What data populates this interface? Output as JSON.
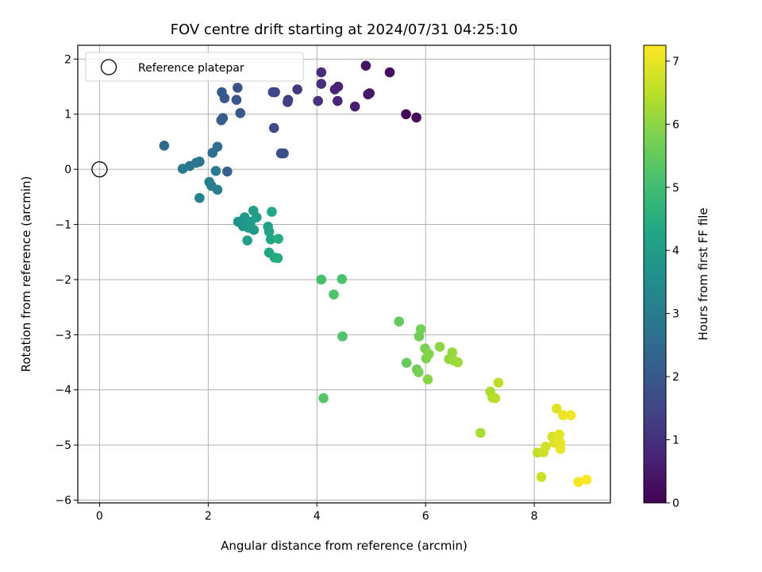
{
  "chart_data": {
    "type": "scatter",
    "title": "FOV centre drift starting at 2024/07/31 04:25:10",
    "xlabel": "Angular distance from reference (arcmin)",
    "ylabel": "Rotation from reference (arcmin)",
    "xlim": [
      -0.4,
      9.4
    ],
    "ylim": [
      -6.05,
      2.25
    ],
    "xticks": [
      0,
      2,
      4,
      6,
      8
    ],
    "yticks": [
      2,
      1,
      0,
      -1,
      -2,
      -3,
      -4,
      -5,
      -6
    ],
    "xtick_labels": [
      "0",
      "2",
      "4",
      "6",
      "8"
    ],
    "ytick_labels": [
      "2",
      "1",
      "0",
      "−1",
      "−2",
      "−3",
      "−4",
      "−5",
      "−6"
    ],
    "grid": true,
    "legend": {
      "position": "top-left",
      "entries": [
        {
          "label": "Reference platepar",
          "marker": "open-circle"
        }
      ]
    },
    "reference_point": {
      "x": 0,
      "y": 0
    },
    "colorbar": {
      "label": "Hours from first FF file",
      "colormap": "viridis",
      "range": [
        0,
        7.25
      ],
      "ticks": [
        0,
        1,
        2,
        3,
        4,
        5,
        6,
        7
      ],
      "tick_labels": [
        "0",
        "1",
        "2",
        "3",
        "4",
        "5",
        "6",
        "7"
      ]
    },
    "points": [
      [
        5.64,
        1.0,
        0.1
      ],
      [
        5.83,
        0.94,
        0.15
      ],
      [
        5.34,
        1.76,
        0.25
      ],
      [
        4.9,
        1.88,
        0.35
      ],
      [
        4.97,
        1.38,
        0.45
      ],
      [
        4.94,
        1.36,
        0.5
      ],
      [
        4.7,
        1.14,
        0.6
      ],
      [
        4.39,
        1.5,
        0.7
      ],
      [
        4.33,
        1.45,
        0.75
      ],
      [
        4.38,
        1.24,
        0.8
      ],
      [
        4.08,
        1.76,
        0.9
      ],
      [
        4.08,
        1.55,
        1.0
      ],
      [
        4.02,
        1.24,
        1.05
      ],
      [
        3.64,
        1.45,
        1.2
      ],
      [
        3.47,
        1.26,
        1.3
      ],
      [
        3.46,
        1.22,
        1.35
      ],
      [
        3.23,
        1.4,
        1.45
      ],
      [
        3.19,
        1.4,
        1.5
      ],
      [
        3.21,
        0.75,
        1.6
      ],
      [
        3.39,
        0.29,
        1.65
      ],
      [
        3.34,
        0.29,
        1.7
      ],
      [
        2.54,
        1.48,
        1.8
      ],
      [
        2.52,
        1.26,
        1.9
      ],
      [
        2.59,
        1.02,
        1.95
      ],
      [
        2.3,
        1.29,
        2.0
      ],
      [
        2.25,
        1.4,
        2.05
      ],
      [
        2.27,
        0.93,
        2.1
      ],
      [
        2.24,
        0.89,
        2.15
      ],
      [
        2.35,
        -0.04,
        2.2
      ],
      [
        1.19,
        0.43,
        2.5
      ],
      [
        2.17,
        0.41,
        2.55
      ],
      [
        2.08,
        0.3,
        2.6
      ],
      [
        1.84,
        0.14,
        2.75
      ],
      [
        1.78,
        0.12,
        2.8
      ],
      [
        1.66,
        0.06,
        2.85
      ],
      [
        1.53,
        0.01,
        2.9
      ],
      [
        2.14,
        -0.03,
        2.95
      ],
      [
        2.02,
        -0.23,
        3.0
      ],
      [
        2.06,
        -0.3,
        3.05
      ],
      [
        2.17,
        -0.37,
        3.1
      ],
      [
        1.84,
        -0.52,
        3.15
      ],
      [
        2.55,
        -0.95,
        3.7
      ],
      [
        2.64,
        -1.03,
        3.75
      ],
      [
        2.67,
        -0.87,
        3.8
      ],
      [
        2.74,
        -1.06,
        3.85
      ],
      [
        2.78,
        -0.95,
        3.9
      ],
      [
        2.84,
        -1.1,
        3.95
      ],
      [
        2.89,
        -0.87,
        4.0
      ],
      [
        2.83,
        -0.75,
        4.05
      ],
      [
        2.72,
        -1.29,
        4.1
      ],
      [
        3.1,
        -1.04,
        4.15
      ],
      [
        3.12,
        -1.13,
        4.2
      ],
      [
        3.15,
        -1.27,
        4.25
      ],
      [
        3.12,
        -1.51,
        4.3
      ],
      [
        3.17,
        -0.77,
        4.35
      ],
      [
        3.22,
        -1.6,
        4.4
      ],
      [
        3.28,
        -1.61,
        4.45
      ],
      [
        3.29,
        -1.26,
        4.5
      ],
      [
        4.08,
        -2.0,
        5.1
      ],
      [
        4.46,
        -1.99,
        5.15
      ],
      [
        4.31,
        -2.27,
        5.2
      ],
      [
        4.47,
        -3.03,
        5.25
      ],
      [
        4.12,
        -4.15,
        5.3
      ],
      [
        5.51,
        -2.76,
        5.5
      ],
      [
        5.65,
        -3.51,
        5.55
      ],
      [
        5.84,
        -3.63,
        5.6
      ],
      [
        5.88,
        -3.03,
        5.65
      ],
      [
        5.91,
        -2.9,
        5.7
      ],
      [
        5.87,
        -3.68,
        5.75
      ],
      [
        5.99,
        -3.25,
        5.8
      ],
      [
        6.01,
        -3.43,
        5.85
      ],
      [
        6.06,
        -3.35,
        5.9
      ],
      [
        6.04,
        -3.81,
        5.95
      ],
      [
        6.26,
        -3.22,
        6.0
      ],
      [
        6.43,
        -3.44,
        6.05
      ],
      [
        6.49,
        -3.32,
        6.1
      ],
      [
        6.52,
        -3.47,
        6.15
      ],
      [
        6.59,
        -3.5,
        6.2
      ],
      [
        7.01,
        -4.78,
        6.3
      ],
      [
        7.19,
        -4.03,
        6.35
      ],
      [
        7.23,
        -4.14,
        6.4
      ],
      [
        7.28,
        -4.15,
        6.45
      ],
      [
        7.34,
        -3.87,
        6.5
      ],
      [
        8.06,
        -5.14,
        6.6
      ],
      [
        8.13,
        -5.58,
        6.65
      ],
      [
        8.17,
        -5.13,
        6.7
      ],
      [
        8.21,
        -5.03,
        6.75
      ],
      [
        8.33,
        -4.85,
        6.8
      ],
      [
        8.37,
        -4.96,
        6.85
      ],
      [
        8.41,
        -4.34,
        6.9
      ],
      [
        8.46,
        -4.81,
        6.95
      ],
      [
        8.48,
        -4.96,
        7.0
      ],
      [
        8.48,
        -5.07,
        7.02
      ],
      [
        8.53,
        -4.46,
        7.05
      ],
      [
        8.67,
        -4.46,
        7.1
      ],
      [
        8.81,
        -5.67,
        7.15
      ],
      [
        8.96,
        -5.63,
        7.2
      ]
    ]
  }
}
